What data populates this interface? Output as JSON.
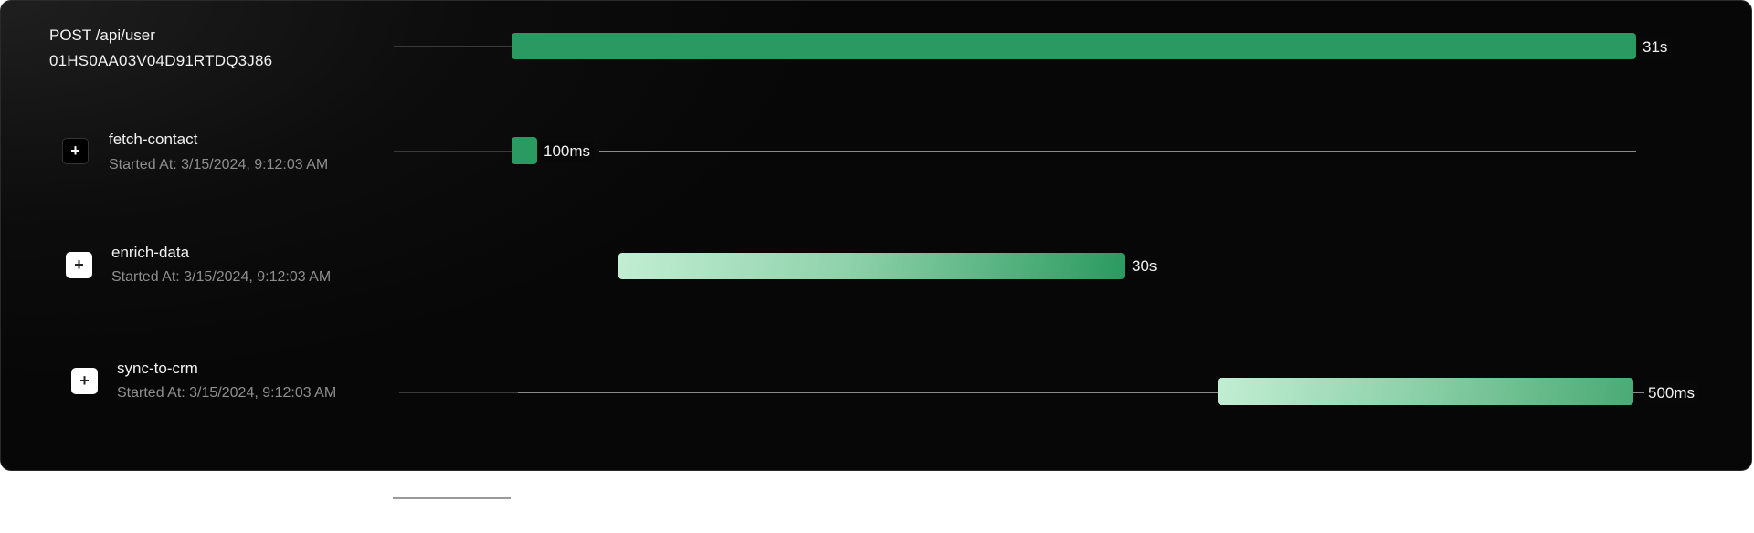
{
  "trace": {
    "title": "POST /api/user",
    "id": "01HS0AA03V04D91RTDQ3J86",
    "duration": "31s"
  },
  "spans": [
    {
      "name": "fetch-contact",
      "started": "Started At: 3/15/2024, 9:12:03 AM",
      "duration": "100ms",
      "expand_icon": "plus-icon",
      "style": "solid"
    },
    {
      "name": "enrich-data",
      "started": "Started At: 3/15/2024, 9:12:03 AM",
      "duration": "30s",
      "expand_icon": "plus-icon",
      "style": "gradient"
    },
    {
      "name": "sync-to-crm",
      "started": "Started At: 3/15/2024, 9:12:03 AM",
      "duration": "500ms",
      "expand_icon": "plus-icon",
      "style": "gradient"
    }
  ],
  "colors": {
    "bar_solid": "#2a9a62",
    "gradient_start": "#c2eed3",
    "gradient_end": "#2a9a5f",
    "card_bg": "#070707"
  }
}
